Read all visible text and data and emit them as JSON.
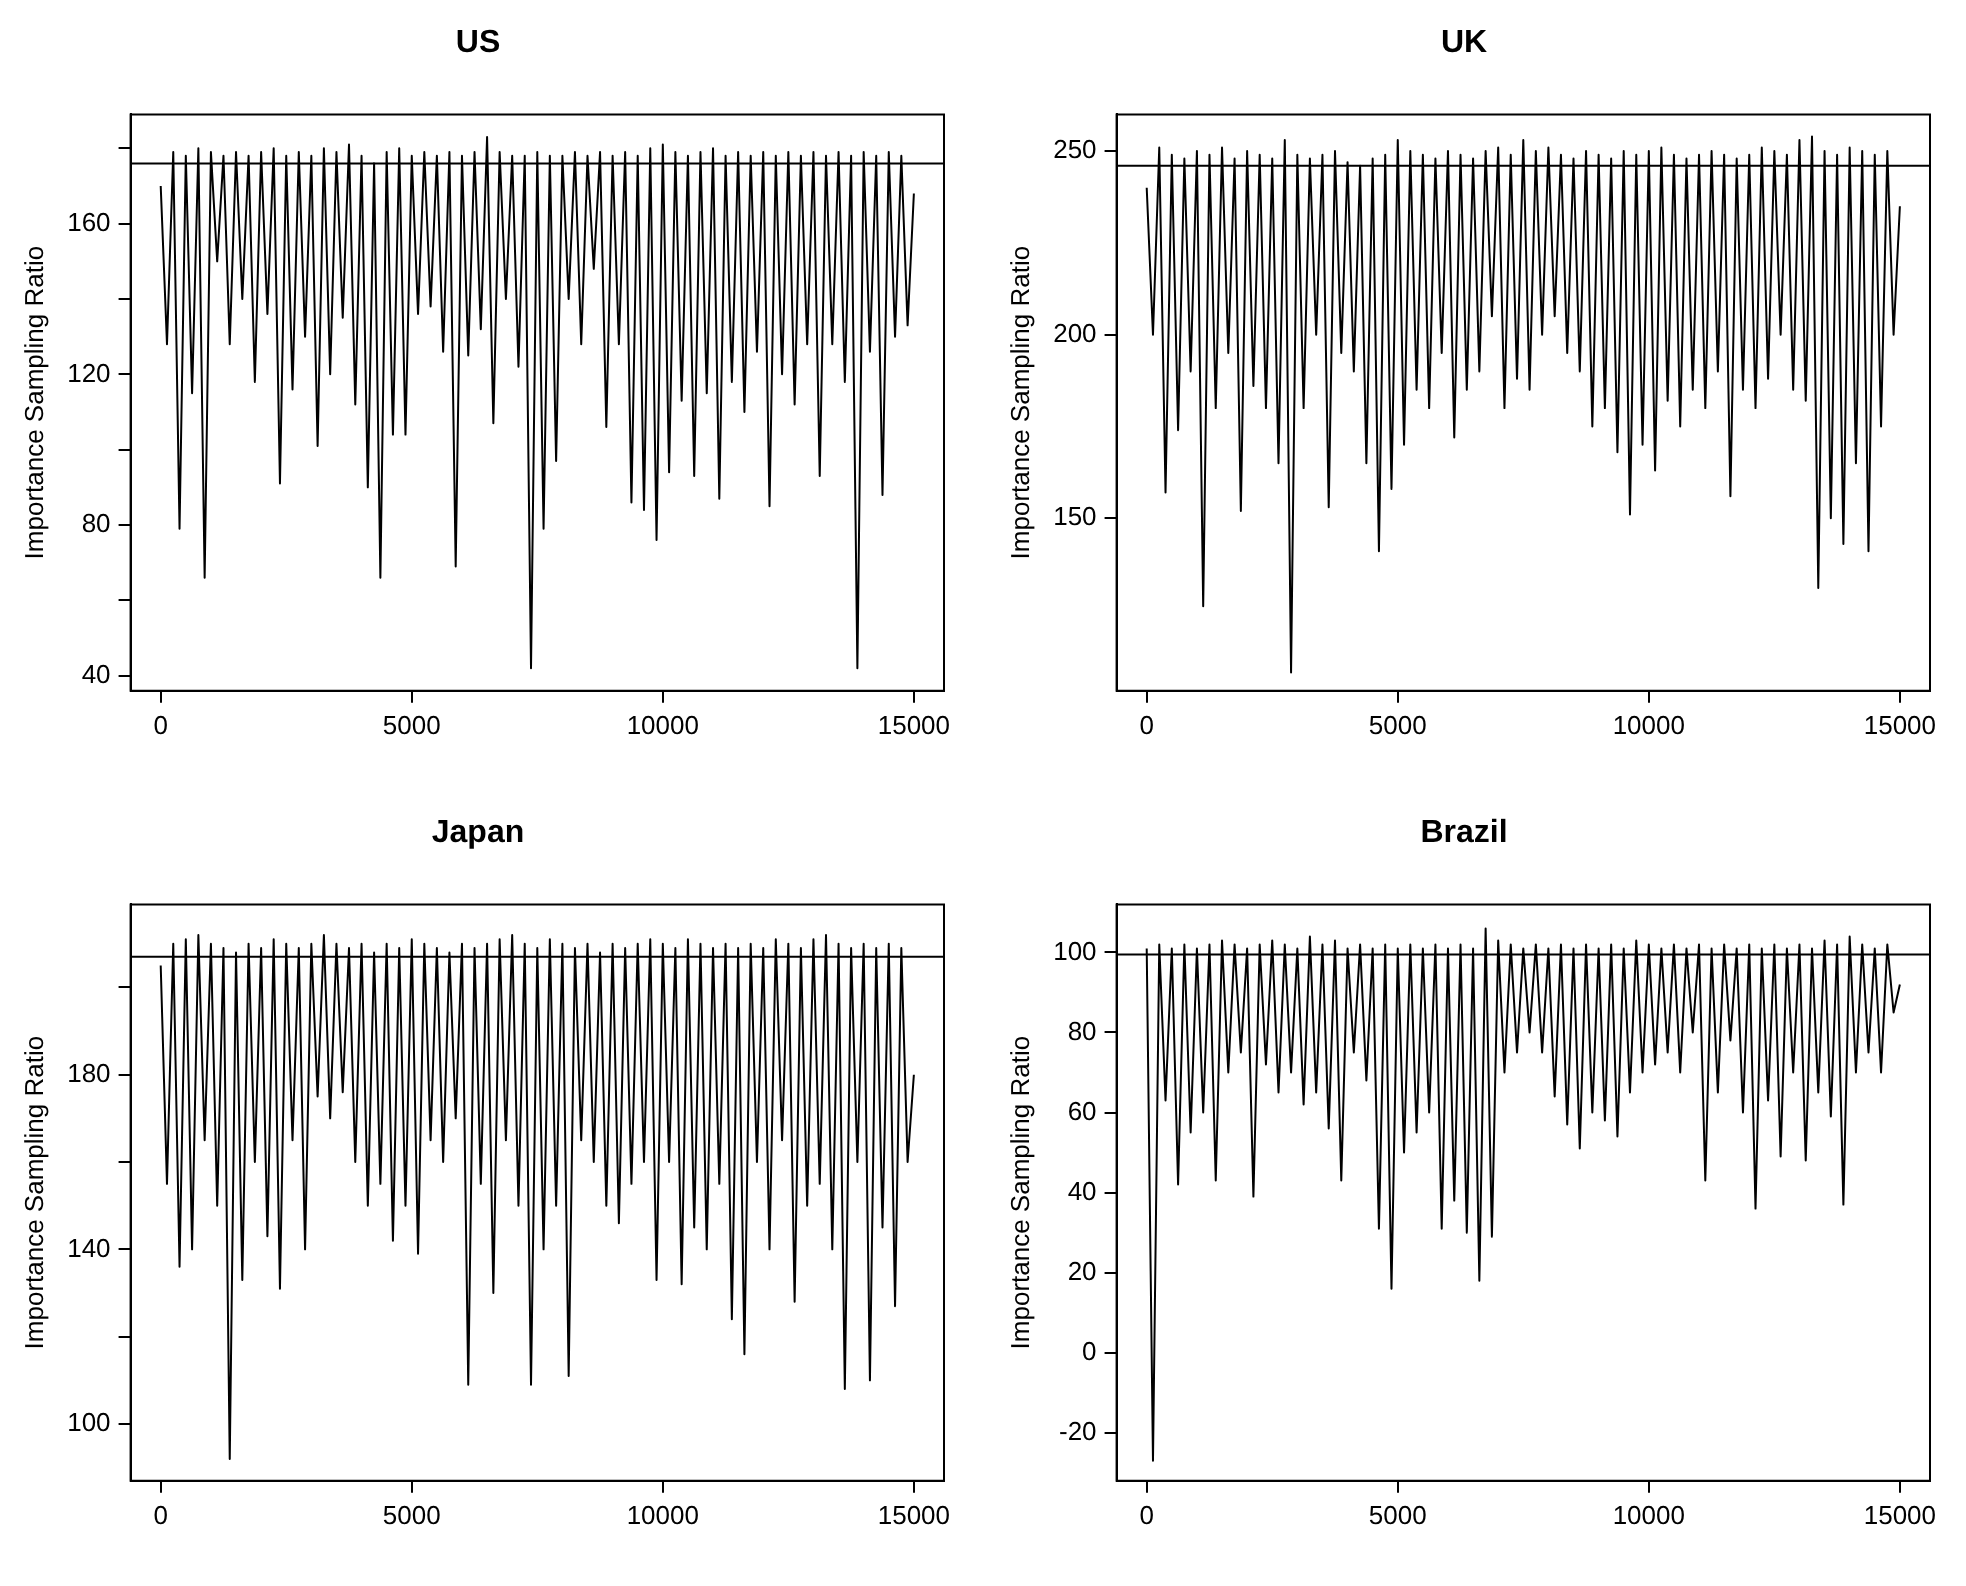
{
  "chart_data": [
    {
      "type": "line",
      "title": "US",
      "ylabel": "Importance Sampling Ratio",
      "xlim": [
        -600,
        15600
      ],
      "xticks": [
        0,
        5000,
        10000,
        15000
      ],
      "ylim": [
        36,
        189
      ],
      "yticks": [
        40,
        {
          "value": 60,
          "label": null
        },
        80,
        {
          "value": 100,
          "label": null
        },
        120,
        {
          "value": 140,
          "label": null
        },
        160,
        {
          "value": 180,
          "label": null
        }
      ],
      "ref_lines": [
        {
          "axis": "y",
          "value": 176,
          "color": "#000000"
        }
      ],
      "x": [
        0,
        125,
        250,
        375,
        500,
        625,
        750,
        875,
        1000,
        1125,
        1250,
        1375,
        1500,
        1625,
        1750,
        1875,
        2000,
        2125,
        2250,
        2375,
        2500,
        2625,
        2750,
        2875,
        3000,
        3125,
        3250,
        3375,
        3500,
        3625,
        3750,
        3875,
        4000,
        4125,
        4250,
        4375,
        4500,
        4625,
        4750,
        4875,
        5000,
        5125,
        5250,
        5375,
        5500,
        5625,
        5750,
        5875,
        6000,
        6125,
        6250,
        6375,
        6500,
        6625,
        6750,
        6875,
        7000,
        7125,
        7250,
        7375,
        7500,
        7625,
        7750,
        7875,
        8000,
        8125,
        8250,
        8375,
        8500,
        8625,
        8750,
        8875,
        9000,
        9125,
        9250,
        9375,
        9500,
        9625,
        9750,
        9875,
        10000,
        10125,
        10250,
        10375,
        10500,
        10625,
        10750,
        10875,
        11000,
        11125,
        11250,
        11375,
        11500,
        11625,
        11750,
        11875,
        12000,
        12125,
        12250,
        12375,
        12500,
        12625,
        12750,
        12875,
        13000,
        13125,
        13250,
        13375,
        13500,
        13625,
        13750,
        13875,
        14000,
        14125,
        14250,
        14375,
        14500,
        14625,
        14750,
        14875,
        15000
      ],
      "series": [
        {
          "color": "#000000",
          "values": [
            170,
            128,
            179,
            79,
            178,
            115,
            180,
            66,
            179,
            150,
            178,
            128,
            179,
            140,
            178,
            118,
            179,
            136,
            180,
            91,
            178,
            116,
            179,
            130,
            178,
            101,
            180,
            120,
            179,
            135,
            181,
            112,
            178,
            90,
            176,
            66,
            179,
            104,
            180,
            104,
            178,
            136,
            179,
            138,
            178,
            126,
            179,
            69,
            178,
            125,
            179,
            132,
            183,
            107,
            179,
            140,
            178,
            122,
            178,
            42,
            179,
            79,
            178,
            97,
            178,
            140,
            179,
            128,
            178,
            148,
            179,
            106,
            178,
            128,
            179,
            86,
            178,
            84,
            180,
            76,
            181,
            94,
            179,
            113,
            178,
            93,
            179,
            115,
            180,
            87,
            178,
            118,
            179,
            110,
            178,
            126,
            179,
            85,
            178,
            120,
            179,
            112,
            178,
            128,
            179,
            93,
            178,
            128,
            179,
            118,
            178,
            42,
            179,
            126,
            178,
            88,
            179,
            130,
            178,
            133,
            168
          ]
        }
      ]
    },
    {
      "type": "line",
      "title": "UK",
      "ylabel": "Importance Sampling Ratio",
      "xlim": [
        -600,
        15600
      ],
      "xticks": [
        0,
        5000,
        10000,
        15000
      ],
      "ylim": [
        103,
        260
      ],
      "yticks": [
        150,
        200,
        250
      ],
      "ref_lines": [
        {
          "axis": "y",
          "value": 246,
          "color": "#000000"
        }
      ],
      "x": [
        0,
        125,
        250,
        375,
        500,
        625,
        750,
        875,
        1000,
        1125,
        1250,
        1375,
        1500,
        1625,
        1750,
        1875,
        2000,
        2125,
        2250,
        2375,
        2500,
        2625,
        2750,
        2875,
        3000,
        3125,
        3250,
        3375,
        3500,
        3625,
        3750,
        3875,
        4000,
        4125,
        4250,
        4375,
        4500,
        4625,
        4750,
        4875,
        5000,
        5125,
        5250,
        5375,
        5500,
        5625,
        5750,
        5875,
        6000,
        6125,
        6250,
        6375,
        6500,
        6625,
        6750,
        6875,
        7000,
        7125,
        7250,
        7375,
        7500,
        7625,
        7750,
        7875,
        8000,
        8125,
        8250,
        8375,
        8500,
        8625,
        8750,
        8875,
        9000,
        9125,
        9250,
        9375,
        9500,
        9625,
        9750,
        9875,
        10000,
        10125,
        10250,
        10375,
        10500,
        10625,
        10750,
        10875,
        11000,
        11125,
        11250,
        11375,
        11500,
        11625,
        11750,
        11875,
        12000,
        12125,
        12250,
        12375,
        12500,
        12625,
        12750,
        12875,
        13000,
        13125,
        13250,
        13375,
        13500,
        13625,
        13750,
        13875,
        14000,
        14125,
        14250,
        14375,
        14500,
        14625,
        14750,
        14875,
        15000
      ],
      "series": [
        {
          "color": "#000000",
          "values": [
            240,
            200,
            251,
            157,
            249,
            174,
            248,
            190,
            250,
            126,
            249,
            180,
            251,
            195,
            248,
            152,
            250,
            186,
            249,
            180,
            248,
            165,
            253,
            108,
            249,
            180,
            248,
            200,
            249,
            153,
            250,
            195,
            247,
            190,
            246,
            165,
            248,
            141,
            249,
            158,
            253,
            170,
            250,
            185,
            249,
            180,
            248,
            195,
            250,
            172,
            249,
            185,
            248,
            190,
            250,
            205,
            251,
            180,
            249,
            188,
            253,
            185,
            250,
            200,
            251,
            205,
            249,
            195,
            248,
            190,
            250,
            175,
            249,
            180,
            248,
            168,
            250,
            151,
            249,
            170,
            250,
            163,
            251,
            182,
            249,
            175,
            248,
            185,
            249,
            180,
            250,
            190,
            249,
            156,
            248,
            185,
            249,
            180,
            251,
            188,
            250,
            200,
            249,
            185,
            253,
            182,
            254,
            131,
            250,
            150,
            249,
            143,
            251,
            165,
            250,
            141,
            249,
            175,
            250,
            200,
            235
          ]
        }
      ]
    },
    {
      "type": "line",
      "title": "Japan",
      "ylabel": "Importance Sampling Ratio",
      "xlim": [
        -600,
        15600
      ],
      "xticks": [
        0,
        5000,
        10000,
        15000
      ],
      "ylim": [
        87,
        219
      ],
      "yticks": [
        100,
        {
          "value": 120,
          "label": null
        },
        140,
        {
          "value": 160,
          "label": null
        },
        180,
        {
          "value": 200,
          "label": null
        }
      ],
      "ref_lines": [
        {
          "axis": "y",
          "value": 207,
          "color": "#000000"
        }
      ],
      "x": [
        0,
        125,
        250,
        375,
        500,
        625,
        750,
        875,
        1000,
        1125,
        1250,
        1375,
        1500,
        1625,
        1750,
        1875,
        2000,
        2125,
        2250,
        2375,
        2500,
        2625,
        2750,
        2875,
        3000,
        3125,
        3250,
        3375,
        3500,
        3625,
        3750,
        3875,
        4000,
        4125,
        4250,
        4375,
        4500,
        4625,
        4750,
        4875,
        5000,
        5125,
        5250,
        5375,
        5500,
        5625,
        5750,
        5875,
        6000,
        6125,
        6250,
        6375,
        6500,
        6625,
        6750,
        6875,
        7000,
        7125,
        7250,
        7375,
        7500,
        7625,
        7750,
        7875,
        8000,
        8125,
        8250,
        8375,
        8500,
        8625,
        8750,
        8875,
        9000,
        9125,
        9250,
        9375,
        9500,
        9625,
        9750,
        9875,
        10000,
        10125,
        10250,
        10375,
        10500,
        10625,
        10750,
        10875,
        11000,
        11125,
        11250,
        11375,
        11500,
        11625,
        11750,
        11875,
        12000,
        12125,
        12250,
        12375,
        12500,
        12625,
        12750,
        12875,
        13000,
        13125,
        13250,
        13375,
        13500,
        13625,
        13750,
        13875,
        14000,
        14125,
        14250,
        14375,
        14500,
        14625,
        14750,
        14875,
        15000
      ],
      "series": [
        {
          "color": "#000000",
          "values": [
            205,
            155,
            210,
            136,
            211,
            140,
            212,
            165,
            210,
            150,
            209,
            92,
            208,
            133,
            210,
            160,
            209,
            143,
            211,
            131,
            210,
            165,
            209,
            140,
            210,
            175,
            212,
            170,
            210,
            176,
            209,
            160,
            210,
            150,
            208,
            155,
            210,
            142,
            209,
            150,
            211,
            139,
            210,
            165,
            209,
            160,
            208,
            170,
            210,
            109,
            209,
            155,
            210,
            130,
            211,
            165,
            212,
            150,
            210,
            109,
            209,
            140,
            211,
            150,
            210,
            111,
            209,
            165,
            210,
            160,
            208,
            150,
            210,
            146,
            209,
            155,
            210,
            160,
            211,
            133,
            210,
            160,
            209,
            132,
            211,
            145,
            210,
            140,
            209,
            155,
            210,
            124,
            209,
            116,
            210,
            160,
            209,
            140,
            211,
            165,
            210,
            128,
            209,
            150,
            211,
            155,
            212,
            140,
            210,
            108,
            209,
            160,
            210,
            110,
            209,
            145,
            210,
            127,
            209,
            160,
            180
          ]
        }
      ]
    },
    {
      "type": "line",
      "title": "Brazil",
      "ylabel": "Importance Sampling Ratio",
      "xlim": [
        -600,
        15600
      ],
      "xticks": [
        0,
        5000,
        10000,
        15000
      ],
      "ylim": [
        -32,
        112
      ],
      "yticks": [
        -20,
        0,
        20,
        40,
        60,
        80,
        100
      ],
      "ref_lines": [
        {
          "axis": "y",
          "value": 99.5,
          "color": "#000000"
        }
      ],
      "x": [
        0,
        125,
        250,
        375,
        500,
        625,
        750,
        875,
        1000,
        1125,
        1250,
        1375,
        1500,
        1625,
        1750,
        1875,
        2000,
        2125,
        2250,
        2375,
        2500,
        2625,
        2750,
        2875,
        3000,
        3125,
        3250,
        3375,
        3500,
        3625,
        3750,
        3875,
        4000,
        4125,
        4250,
        4375,
        4500,
        4625,
        4750,
        4875,
        5000,
        5125,
        5250,
        5375,
        5500,
        5625,
        5750,
        5875,
        6000,
        6125,
        6250,
        6375,
        6500,
        6625,
        6750,
        6875,
        7000,
        7125,
        7250,
        7375,
        7500,
        7625,
        7750,
        7875,
        8000,
        8125,
        8250,
        8375,
        8500,
        8625,
        8750,
        8875,
        9000,
        9125,
        9250,
        9375,
        9500,
        9625,
        9750,
        9875,
        10000,
        10125,
        10250,
        10375,
        10500,
        10625,
        10750,
        10875,
        11000,
        11125,
        11250,
        11375,
        11500,
        11625,
        11750,
        11875,
        12000,
        12125,
        12250,
        12375,
        12500,
        12625,
        12750,
        12875,
        13000,
        13125,
        13250,
        13375,
        13500,
        13625,
        13750,
        13875,
        14000,
        14125,
        14250,
        14375,
        14500,
        14625,
        14750,
        14875,
        15000
      ],
      "series": [
        {
          "color": "#000000",
          "values": [
            101,
            -27,
            102,
            63,
            101,
            42,
            102,
            55,
            101,
            60,
            102,
            43,
            103,
            70,
            102,
            75,
            101,
            39,
            102,
            72,
            103,
            65,
            102,
            70,
            101,
            62,
            104,
            65,
            102,
            56,
            103,
            43,
            101,
            75,
            102,
            68,
            101,
            31,
            102,
            16,
            101,
            50,
            102,
            55,
            101,
            60,
            102,
            31,
            101,
            38,
            102,
            30,
            101,
            18,
            106,
            29,
            103,
            70,
            102,
            75,
            101,
            80,
            102,
            75,
            101,
            64,
            102,
            57,
            101,
            51,
            102,
            60,
            101,
            58,
            102,
            54,
            101,
            65,
            103,
            70,
            102,
            72,
            101,
            75,
            102,
            70,
            101,
            80,
            102,
            43,
            101,
            65,
            102,
            78,
            101,
            60,
            102,
            36,
            101,
            63,
            102,
            49,
            101,
            70,
            102,
            48,
            101,
            65,
            103,
            59,
            102,
            37,
            104,
            70,
            102,
            75,
            101,
            70,
            102,
            85,
            92
          ]
        }
      ]
    }
  ]
}
